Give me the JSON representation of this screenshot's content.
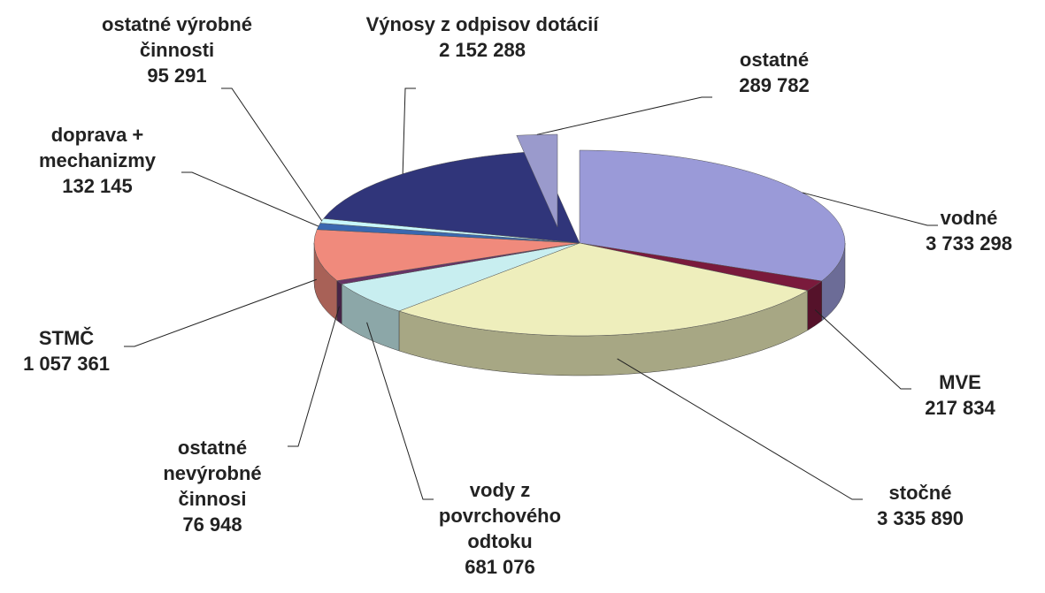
{
  "chart_data": {
    "type": "pie",
    "categories": [
      "vodné",
      "MVE",
      "stočné",
      "vody z povrchového odtoku",
      "ostatné nevýrobné činnosi",
      "STMČ",
      "doprava + mechanizmy",
      "ostatné výrobné činnosti",
      "Výnosy z odpisov dotácií",
      "ostatné"
    ],
    "values": [
      3733298,
      217834,
      3335890,
      681076,
      76948,
      1057361,
      132145,
      95291,
      2152288,
      289782
    ],
    "value_labels": [
      "3 733 298",
      "217 834",
      "3 335 890",
      "681 076",
      "76 948",
      "1 057 361",
      "132 145",
      "95 291",
      "2 152 288",
      "289 782"
    ],
    "colors": [
      "#9a9ad8",
      "#7a1a3c",
      "#eeeebc",
      "#c8eef0",
      "#663366",
      "#f08a7c",
      "#3a68b0",
      "#c8f8fc",
      "#30357a",
      "#9a9acc"
    ]
  }
}
